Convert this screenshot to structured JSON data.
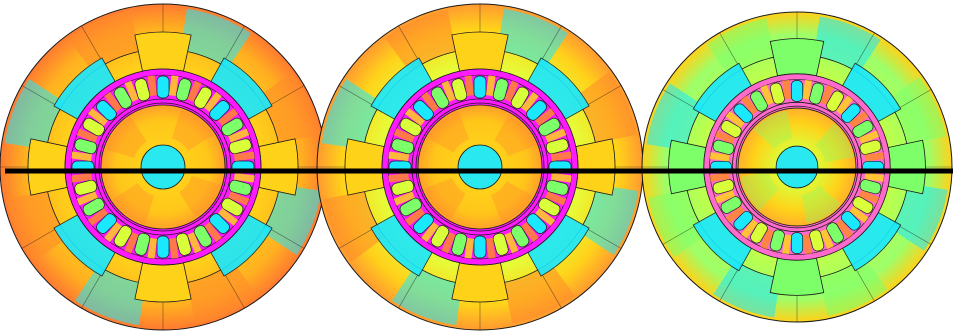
{
  "figure": {
    "panels": [
      {
        "id": "left",
        "tint": "warm"
      },
      {
        "id": "middle",
        "tint": "mid"
      },
      {
        "id": "right",
        "tint": "cool"
      }
    ],
    "stator_slots": 24,
    "rotor_slots": 24,
    "rotor_poles": 4,
    "colors": {
      "background": "#ffffff",
      "outline": "#1a1a1a",
      "cut_line": "#000000",
      "shaft": "#2ae8f0",
      "field_palette": [
        "#19e8ff",
        "#7dff6a",
        "#d9ff3a",
        "#ffd21a",
        "#ff8a2a",
        "#ff3a6a",
        "#ff1aff"
      ]
    }
  }
}
